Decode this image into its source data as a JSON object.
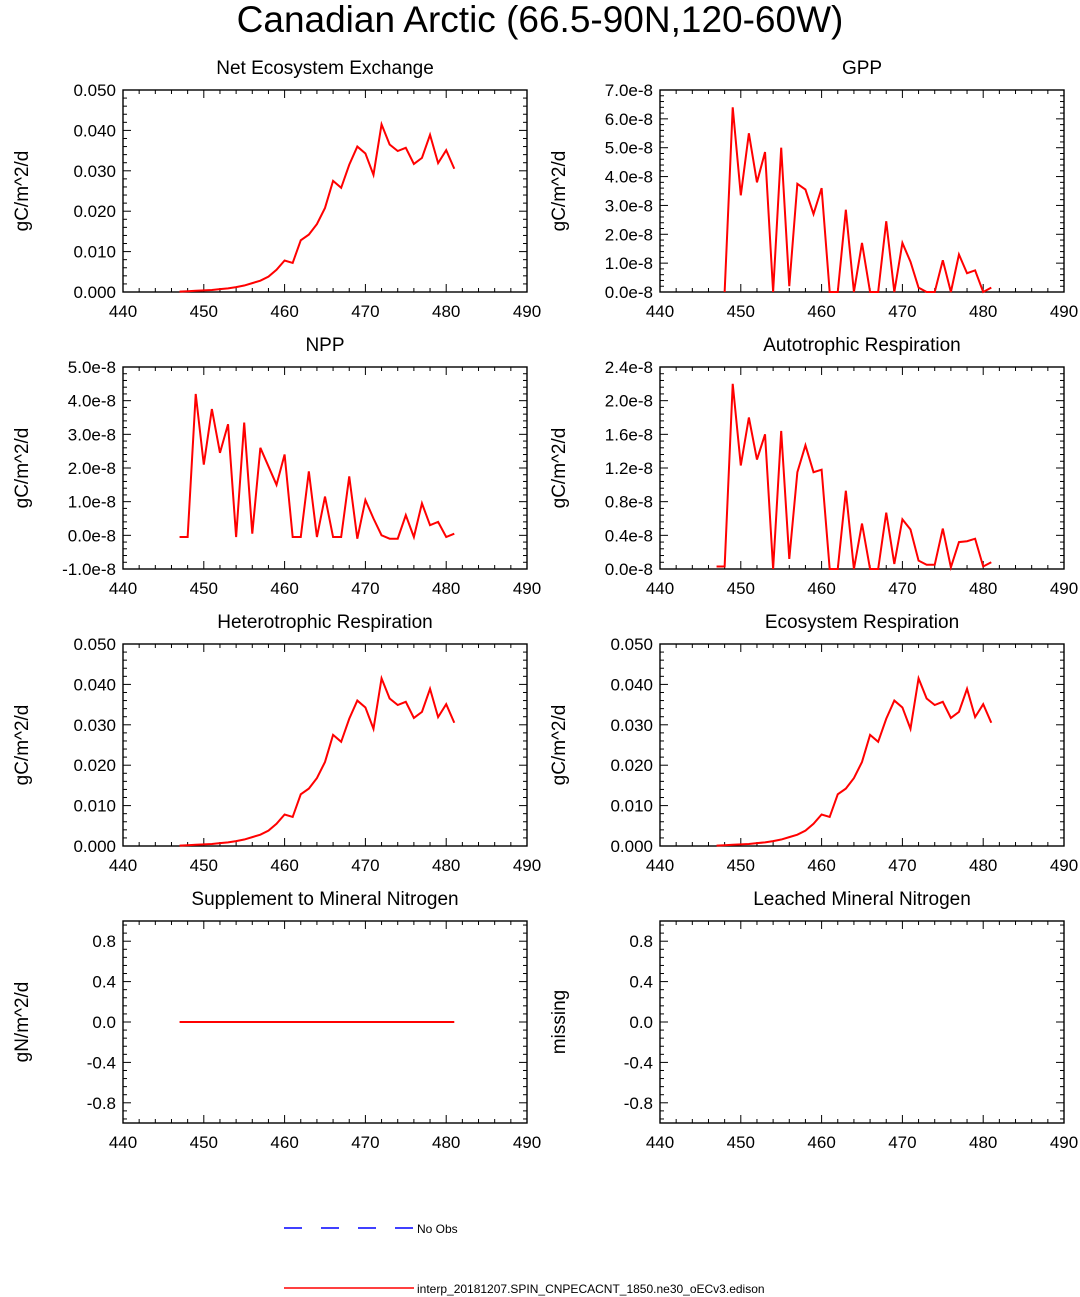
{
  "figure_title": "Canadian Arctic (66.5-90N,120-60W)",
  "legend": [
    {
      "label": "No Obs",
      "color": "#0000ff",
      "style": "dashed"
    },
    {
      "label": "interp_20181207.SPIN_CNPECACNT_1850.ne30_oECv3.edison",
      "color": "#ff0000",
      "style": "solid"
    }
  ],
  "chart_data": [
    {
      "type": "line",
      "title": "Net Ecosystem Exchange",
      "ylabel": "gC/m^2/d",
      "xlim": [
        440,
        490
      ],
      "ylim": [
        0,
        0.05
      ],
      "xticks": [
        440,
        450,
        460,
        470,
        480,
        490
      ],
      "xtick_labels": [
        "440",
        "450",
        "460",
        "470",
        "480",
        "490"
      ],
      "yticks": [
        0,
        0.01,
        0.02,
        0.03,
        0.04,
        0.05
      ],
      "ytick_labels": [
        "0.000",
        "0.010",
        "0.020",
        "0.030",
        "0.040",
        "0.050"
      ],
      "series": [
        {
          "name": "interp_20181207.SPIN_CNPECACNT_1850.ne30_oECv3.edison",
          "color": "#ff0000",
          "x": [
            447,
            448,
            449,
            450,
            451,
            452,
            453,
            454,
            455,
            456,
            457,
            458,
            459,
            460,
            461,
            462,
            463,
            464,
            465,
            466,
            467,
            468,
            469,
            470,
            471,
            472,
            473,
            474,
            475,
            476,
            477,
            478,
            479,
            480,
            481
          ],
          "y": [
            0.0001,
            0.0002,
            0.0003,
            0.0004,
            0.0005,
            0.0007,
            0.0009,
            0.0012,
            0.0016,
            0.0022,
            0.0028,
            0.0038,
            0.0055,
            0.0078,
            0.0072,
            0.0128,
            0.0142,
            0.0168,
            0.0208,
            0.0275,
            0.0258,
            0.0315,
            0.036,
            0.0343,
            0.029,
            0.0415,
            0.0365,
            0.0349,
            0.0357,
            0.0317,
            0.0332,
            0.0389,
            0.0319,
            0.0351,
            0.0305
          ]
        }
      ]
    },
    {
      "type": "line",
      "title": "GPP",
      "ylabel": "gC/m^2/d",
      "xlim": [
        440,
        490
      ],
      "ylim": [
        0,
        7e-08
      ],
      "xticks": [
        440,
        450,
        460,
        470,
        480,
        490
      ],
      "xtick_labels": [
        "440",
        "450",
        "460",
        "470",
        "480",
        "490"
      ],
      "yticks": [
        0,
        1e-08,
        2e-08,
        3e-08,
        4e-08,
        5e-08,
        6e-08,
        7e-08
      ],
      "ytick_labels": [
        "0.0e-8",
        "1.0e-8",
        "2.0e-8",
        "3.0e-8",
        "4.0e-8",
        "5.0e-8",
        "6.0e-8",
        "7.0e-8"
      ],
      "series": [
        {
          "name": "interp_20181207.SPIN_CNPECACNT_1850.ne30_oECv3.edison",
          "color": "#ff0000",
          "x": [
            448,
            449,
            450,
            451,
            452,
            453,
            454,
            455,
            456,
            457,
            458,
            459,
            460,
            461,
            462,
            463,
            464,
            465,
            466,
            467,
            468,
            469,
            470,
            471,
            472,
            473,
            474,
            475,
            476,
            477,
            478,
            479,
            480,
            481
          ],
          "y": [
            0.0,
            6.4e-08,
            3.35e-08,
            5.5e-08,
            3.8e-08,
            4.85e-08,
            0.0,
            5e-08,
            2e-09,
            3.75e-08,
            3.55e-08,
            2.7e-08,
            3.6e-08,
            0.0,
            0.0,
            2.85e-08,
            0.0,
            1.7e-08,
            0.0,
            0.0,
            2.45e-08,
            0.0,
            1.7e-08,
            1.05e-08,
            1.5e-09,
            0.0,
            0.0,
            1.1e-08,
            0.0,
            1.3e-08,
            6.5e-09,
            7.5e-09,
            0.0,
            1.5e-09
          ]
        }
      ]
    },
    {
      "type": "line",
      "title": "NPP",
      "ylabel": "gC/m^2/d",
      "xlim": [
        440,
        490
      ],
      "ylim": [
        -1e-08,
        5e-08
      ],
      "xticks": [
        440,
        450,
        460,
        470,
        480,
        490
      ],
      "xtick_labels": [
        "440",
        "450",
        "460",
        "470",
        "480",
        "490"
      ],
      "yticks": [
        -1e-08,
        0,
        1e-08,
        2e-08,
        3e-08,
        4e-08,
        5e-08
      ],
      "ytick_labels": [
        "-1.0e-8",
        "0.0e-8",
        "1.0e-8",
        "2.0e-8",
        "3.0e-8",
        "4.0e-8",
        "5.0e-8"
      ],
      "series": [
        {
          "name": "interp_20181207.SPIN_CNPECACNT_1850.ne30_oECv3.edison",
          "color": "#ff0000",
          "x": [
            447,
            448,
            449,
            450,
            451,
            452,
            453,
            454,
            455,
            456,
            457,
            458,
            459,
            460,
            461,
            462,
            463,
            464,
            465,
            466,
            467,
            468,
            469,
            470,
            471,
            472,
            473,
            474,
            475,
            476,
            477,
            478,
            479,
            480,
            481
          ],
          "y": [
            -5e-10,
            -5e-10,
            4.2e-08,
            2.1e-08,
            3.75e-08,
            2.45e-08,
            3.3e-08,
            -5e-10,
            3.35e-08,
            5e-10,
            2.6e-08,
            2.05e-08,
            1.5e-08,
            2.4e-08,
            -5e-10,
            -5e-10,
            1.9e-08,
            -5e-10,
            1.15e-08,
            -5e-10,
            -5e-10,
            1.75e-08,
            -1e-09,
            1.05e-08,
            5e-09,
            0.0,
            -1e-09,
            -1e-09,
            6e-09,
            -5e-10,
            9.5e-09,
            3e-09,
            4e-09,
            -5e-10,
            5e-10
          ]
        }
      ]
    },
    {
      "type": "line",
      "title": "Autotrophic Respiration",
      "ylabel": "gC/m^2/d",
      "xlim": [
        440,
        490
      ],
      "ylim": [
        0,
        2.4e-08
      ],
      "xticks": [
        440,
        450,
        460,
        470,
        480,
        490
      ],
      "xtick_labels": [
        "440",
        "450",
        "460",
        "470",
        "480",
        "490"
      ],
      "yticks": [
        0,
        4e-09,
        8e-09,
        1.2e-08,
        1.6e-08,
        2e-08,
        2.4e-08
      ],
      "ytick_labels": [
        "0.0e-8",
        "0.4e-8",
        "0.8e-8",
        "1.2e-8",
        "1.6e-8",
        "2.0e-8",
        "2.4e-8"
      ],
      "series": [
        {
          "name": "interp_20181207.SPIN_CNPECACNT_1850.ne30_oECv3.edison",
          "color": "#ff0000",
          "x": [
            447,
            448,
            449,
            450,
            451,
            452,
            453,
            454,
            455,
            456,
            457,
            458,
            459,
            460,
            461,
            462,
            463,
            464,
            465,
            466,
            467,
            468,
            469,
            470,
            471,
            472,
            473,
            474,
            475,
            476,
            477,
            478,
            479,
            480,
            481
          ],
          "y": [
            3e-10,
            3e-10,
            2.2e-08,
            1.23e-08,
            1.8e-08,
            1.3e-08,
            1.6e-08,
            0.0,
            1.64e-08,
            1.2e-09,
            1.15e-08,
            1.47e-08,
            1.15e-08,
            1.18e-08,
            0.0,
            0.0,
            9.3e-09,
            0.0,
            5.4e-09,
            0.0,
            0.0,
            6.7e-09,
            6e-10,
            5.9e-09,
            4.7e-09,
            1e-09,
            5e-10,
            5e-10,
            4.8e-09,
            2e-10,
            3.2e-09,
            3.3e-09,
            3.6e-09,
            3e-10,
            8e-10
          ]
        }
      ]
    },
    {
      "type": "line",
      "title": "Heterotrophic Respiration",
      "ylabel": "gC/m^2/d",
      "xlim": [
        440,
        490
      ],
      "ylim": [
        0,
        0.05
      ],
      "xticks": [
        440,
        450,
        460,
        470,
        480,
        490
      ],
      "xtick_labels": [
        "440",
        "450",
        "460",
        "470",
        "480",
        "490"
      ],
      "yticks": [
        0,
        0.01,
        0.02,
        0.03,
        0.04,
        0.05
      ],
      "ytick_labels": [
        "0.000",
        "0.010",
        "0.020",
        "0.030",
        "0.040",
        "0.050"
      ],
      "series": [
        {
          "name": "interp_20181207.SPIN_CNPECACNT_1850.ne30_oECv3.edison",
          "color": "#ff0000",
          "x": [
            447,
            448,
            449,
            450,
            451,
            452,
            453,
            454,
            455,
            456,
            457,
            458,
            459,
            460,
            461,
            462,
            463,
            464,
            465,
            466,
            467,
            468,
            469,
            470,
            471,
            472,
            473,
            474,
            475,
            476,
            477,
            478,
            479,
            480,
            481
          ],
          "y": [
            0.0001,
            0.0002,
            0.0003,
            0.0004,
            0.0005,
            0.0007,
            0.0009,
            0.0012,
            0.0016,
            0.0022,
            0.0028,
            0.0038,
            0.0055,
            0.0078,
            0.0072,
            0.0128,
            0.0142,
            0.0168,
            0.0208,
            0.0275,
            0.0258,
            0.0315,
            0.036,
            0.0343,
            0.029,
            0.0415,
            0.0365,
            0.0349,
            0.0357,
            0.0317,
            0.0332,
            0.0389,
            0.0319,
            0.0351,
            0.0305
          ]
        }
      ]
    },
    {
      "type": "line",
      "title": "Ecosystem Respiration",
      "ylabel": "gC/m^2/d",
      "xlim": [
        440,
        490
      ],
      "ylim": [
        0,
        0.05
      ],
      "xticks": [
        440,
        450,
        460,
        470,
        480,
        490
      ],
      "xtick_labels": [
        "440",
        "450",
        "460",
        "470",
        "480",
        "490"
      ],
      "yticks": [
        0,
        0.01,
        0.02,
        0.03,
        0.04,
        0.05
      ],
      "ytick_labels": [
        "0.000",
        "0.010",
        "0.020",
        "0.030",
        "0.040",
        "0.050"
      ],
      "series": [
        {
          "name": "interp_20181207.SPIN_CNPECACNT_1850.ne30_oECv3.edison",
          "color": "#ff0000",
          "x": [
            447,
            448,
            449,
            450,
            451,
            452,
            453,
            454,
            455,
            456,
            457,
            458,
            459,
            460,
            461,
            462,
            463,
            464,
            465,
            466,
            467,
            468,
            469,
            470,
            471,
            472,
            473,
            474,
            475,
            476,
            477,
            478,
            479,
            480,
            481
          ],
          "y": [
            0.0001,
            0.0002,
            0.0003,
            0.0004,
            0.0005,
            0.0007,
            0.0009,
            0.0012,
            0.0016,
            0.0022,
            0.0028,
            0.0038,
            0.0055,
            0.0078,
            0.0072,
            0.0128,
            0.0142,
            0.0168,
            0.0208,
            0.0275,
            0.0258,
            0.0315,
            0.036,
            0.0343,
            0.029,
            0.0415,
            0.0365,
            0.0349,
            0.0357,
            0.0317,
            0.0332,
            0.0389,
            0.0319,
            0.0351,
            0.0305
          ]
        }
      ]
    },
    {
      "type": "line",
      "title": "Supplement to Mineral Nitrogen",
      "ylabel": "gN/m^2/d",
      "xlim": [
        440,
        490
      ],
      "ylim": [
        -1,
        1
      ],
      "xticks": [
        440,
        450,
        460,
        470,
        480,
        490
      ],
      "xtick_labels": [
        "440",
        "450",
        "460",
        "470",
        "480",
        "490"
      ],
      "yticks": [
        -0.8,
        -0.4,
        0.0,
        0.4,
        0.8
      ],
      "ytick_labels": [
        "-0.8",
        "-0.4",
        "0.0",
        "0.4",
        "0.8"
      ],
      "series": [
        {
          "name": "interp_20181207.SPIN_CNPECACNT_1850.ne30_oECv3.edison",
          "color": "#ff0000",
          "x": [
            447,
            481
          ],
          "y": [
            0,
            0
          ]
        }
      ]
    },
    {
      "type": "line",
      "title": "Leached Mineral Nitrogen",
      "ylabel": "missing",
      "xlim": [
        440,
        490
      ],
      "ylim": [
        -1,
        1
      ],
      "xticks": [
        440,
        450,
        460,
        470,
        480,
        490
      ],
      "xtick_labels": [
        "440",
        "450",
        "460",
        "470",
        "480",
        "490"
      ],
      "yticks": [
        -0.8,
        -0.4,
        0.0,
        0.4,
        0.8
      ],
      "ytick_labels": [
        "-0.8",
        "-0.4",
        "0.0",
        "0.4",
        "0.8"
      ],
      "series": []
    }
  ]
}
